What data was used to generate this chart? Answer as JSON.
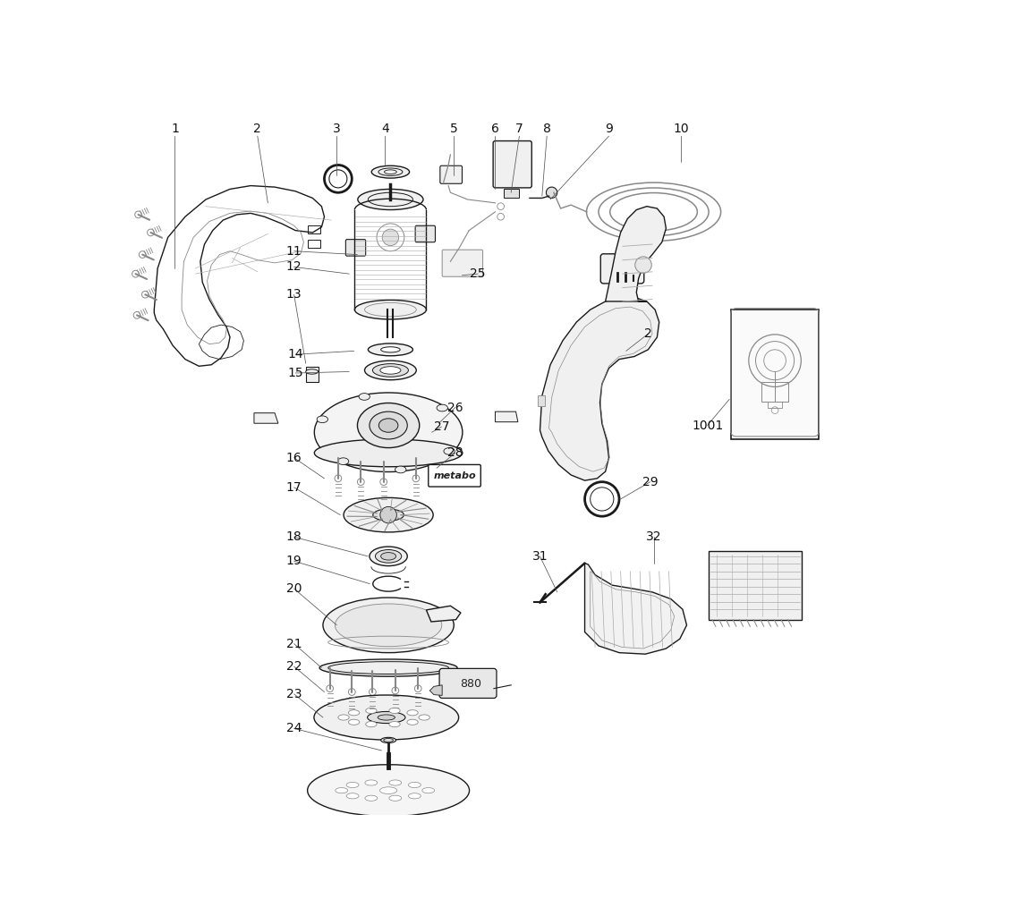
{
  "bg_color": "#ffffff",
  "lc": "#1a1a1a",
  "gray": "#888888",
  "lgray": "#aaaaaa",
  "figsize": [
    11.4,
    10.24
  ],
  "dpi": 100,
  "xlim": [
    0,
    1140
  ],
  "ylim": [
    0,
    1024
  ]
}
